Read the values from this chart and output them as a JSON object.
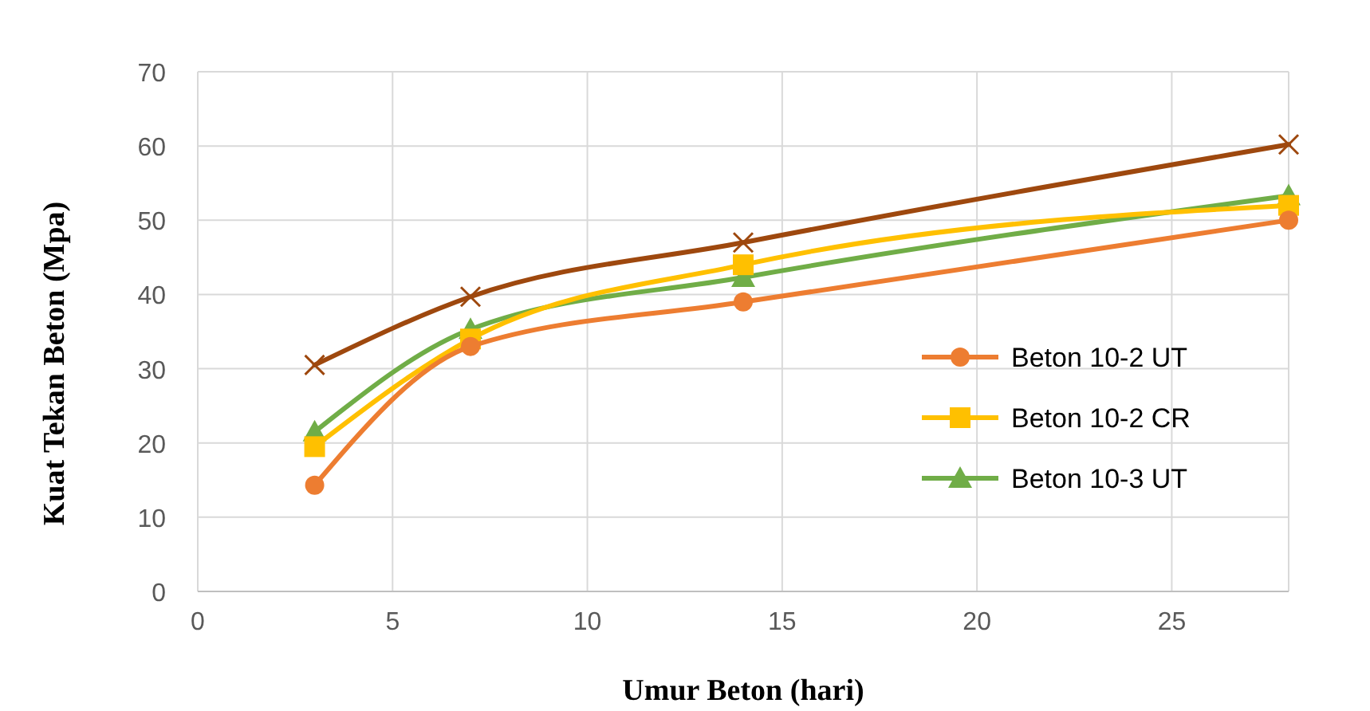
{
  "chart_data": {
    "type": "line",
    "xlabel": "Umur Beton (hari)",
    "ylabel": "Kuat Tekan Beton (Mpa)",
    "x": [
      3,
      7,
      14,
      28
    ],
    "xlim": [
      0,
      28
    ],
    "xticks": [
      0,
      5,
      10,
      15,
      20,
      25
    ],
    "ylim": [
      0,
      70
    ],
    "yticks": [
      0,
      10,
      20,
      30,
      40,
      50,
      60,
      70
    ],
    "grid": true,
    "legend": "right",
    "series": [
      {
        "name": "Beton 10-2 UT",
        "color": "#ed7d31",
        "marker": "circle",
        "values": [
          14.3,
          33,
          39,
          50
        ]
      },
      {
        "name": "Beton 10-2 CR",
        "color": "#ffc000",
        "marker": "square",
        "values": [
          19.5,
          34,
          44,
          52
        ]
      },
      {
        "name": "Beton 10-3 UT",
        "color": "#70ad47",
        "marker": "triangle",
        "values": [
          21.5,
          35.3,
          42.3,
          53.3
        ]
      },
      {
        "color": "#9e480e",
        "marker": "cross",
        "values": [
          30.5,
          39.7,
          47,
          60.2
        ]
      }
    ]
  }
}
